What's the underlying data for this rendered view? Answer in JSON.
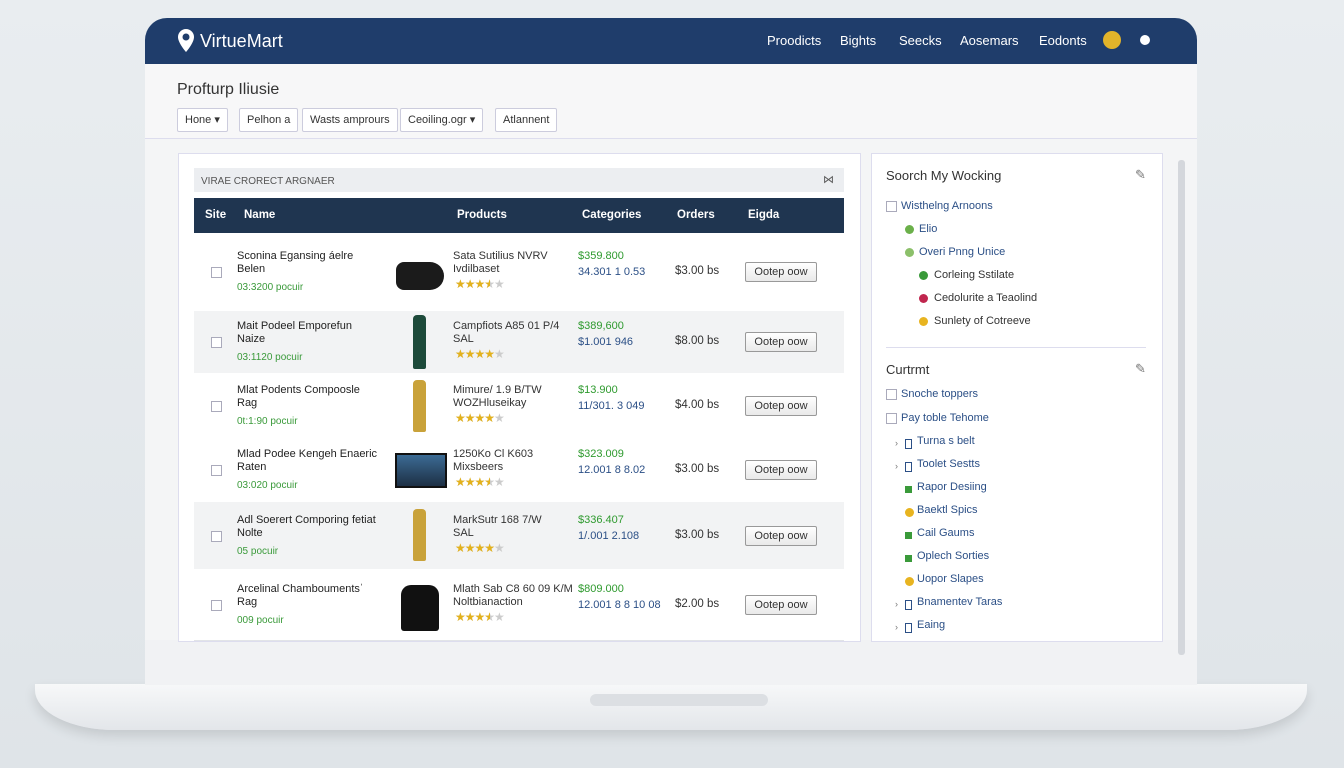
{
  "brand": "VirtueMart",
  "nav": [
    "Proodicts",
    "Bights",
    "Seecks",
    "Aosemars",
    "Eodonts"
  ],
  "page_title": "Profturp Iliusie",
  "toolbar": [
    "Hone",
    "Pelhon a",
    "Wasts amprours",
    "Ceoiling.ogr",
    "Atlannent"
  ],
  "panel_title": "VIRAE CRORECT ARGNAER",
  "table": {
    "headers": [
      "Site",
      "Name",
      "Products",
      "Categories",
      "Orders",
      "Eigda"
    ],
    "rows": [
      {
        "name": "Sconina Egansing áelre Belen",
        "sub": "03:3200 pocuir",
        "product": [
          "Sata Sutilius NVRV",
          "Ivdilbaset"
        ],
        "rating": 3.5,
        "price": "$359.800",
        "code": "34.301 1 0.53",
        "orders": "$3.00 bs",
        "action": "Ootep oow"
      },
      {
        "name": "Mait Podeel Emporefun Naize",
        "sub": "03:1120 pocuir",
        "product": [
          "Campfiots A85 01 P/4",
          "SAL"
        ],
        "rating": 4,
        "price": "$389,600",
        "code": "$1.001 946",
        "orders": "$8.00 bs",
        "action": "Ootep oow"
      },
      {
        "name": "Mlat Podents Compoosle Rag",
        "sub": "0t:1:90 pocuir",
        "product": [
          "Mimure/ 1.9 B/TW",
          "WOZHluseikay"
        ],
        "rating": 4,
        "price": "$13.900",
        "code": "11/301. 3 049",
        "orders": "$4.00 bs",
        "action": "Ootep oow"
      },
      {
        "name": "Mlad Podee Kengeh Enaeric Raten",
        "sub": "03:020 pocuir",
        "product": [
          "1250Ko Cl K603",
          "Mixsbeers"
        ],
        "rating": 3.5,
        "price": "$323.009",
        "code": "12.001 8 8.02",
        "orders": "$3.00 bs",
        "action": "Ootep oow"
      },
      {
        "name": "Adl Soerert Comporing fetiat Nolte",
        "sub": "05 pocuir",
        "product": [
          "MarkSutr 168 7/W",
          "SAL"
        ],
        "rating": 4,
        "price": "$336.407",
        "code": "1/.001 2.108",
        "orders": "$3.00 bs",
        "action": "Ootep oow"
      },
      {
        "name": "Arcelinal Chamboumentsˈ Rag",
        "sub": "009 pocuir",
        "product": [
          "Mlath Sab C8 60 09 K/M",
          "Noltbianaction"
        ],
        "rating": 3.5,
        "price": "$809.000",
        "code": "12.001 8 8 10 08",
        "orders": "$2.00 bs",
        "action": "Ootep oow"
      }
    ]
  },
  "sidebar": [
    {
      "title": "Soorch My Wocking",
      "items": [
        "Wisthelng Arnoons",
        "Elio",
        "Overi Pnng Unice",
        "Corleing Sstilate",
        "Cedolurite a Teaolind",
        "Sunlety of Cotreeve"
      ]
    },
    {
      "title": "Curtrmt",
      "items": [
        "Snoche toppers",
        "Pay toble Tehome",
        "Turna s belt",
        "Toolet Sestts",
        "Rapor Desiing",
        "Baektl Spics",
        "Cail Gaums",
        "Oplech Sorties",
        "Uopor Slapes",
        "Bnamentev Taras",
        "Eaing"
      ]
    }
  ]
}
